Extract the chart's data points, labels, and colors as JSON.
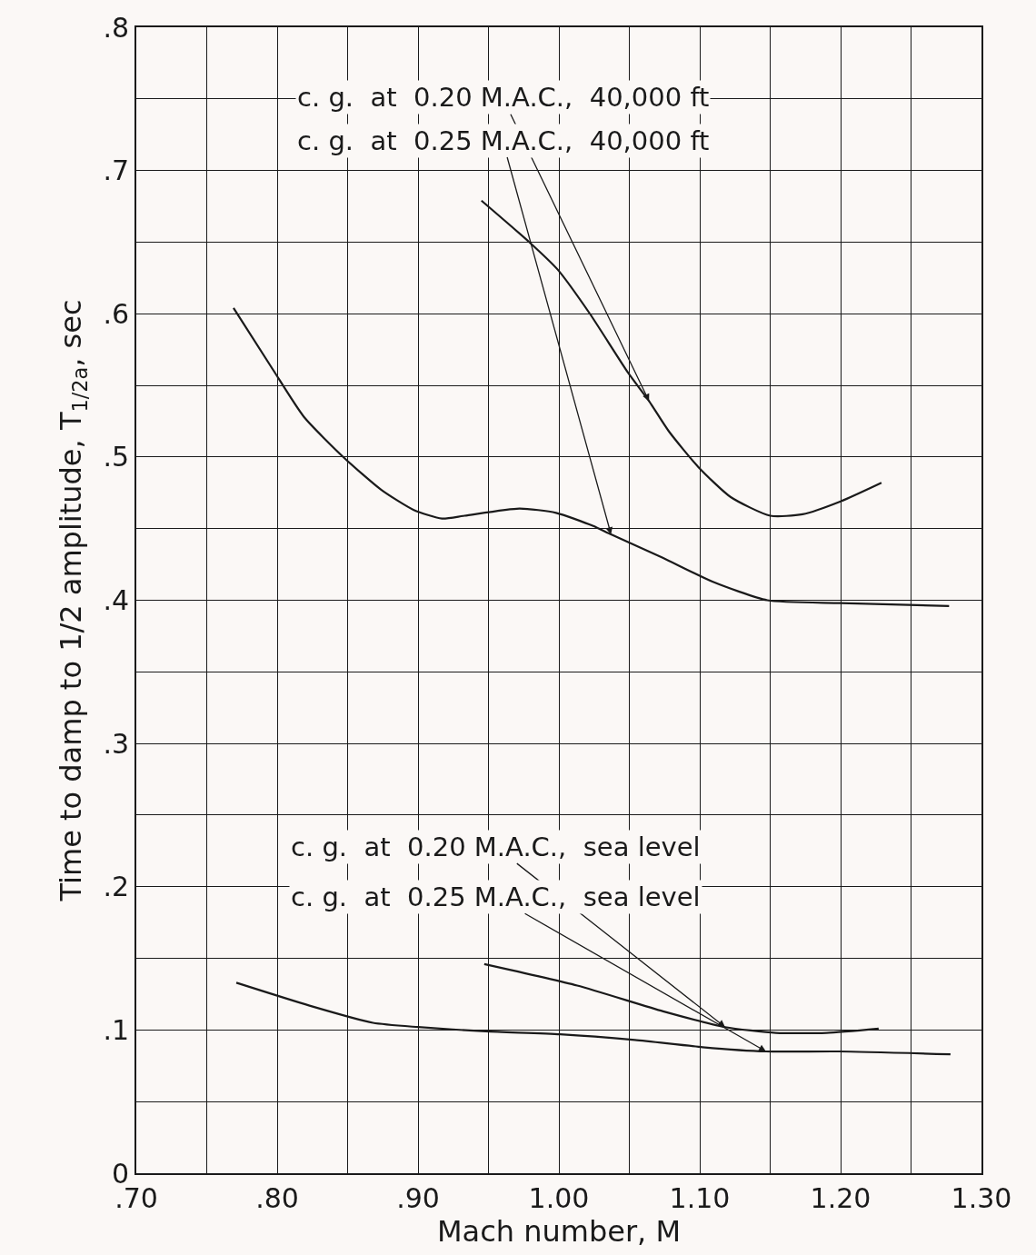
{
  "chart_data": {
    "type": "line",
    "xlabel": "Mach number, M",
    "ylabel": "Time to damp to 1/2 amplitude, T$_{1/2a}$, sec",
    "xlim": [
      0.7,
      1.3
    ],
    "ylim": [
      0,
      0.8
    ],
    "xticks": [
      {
        "value": 0.7,
        "label": ".70"
      },
      {
        "value": 0.75,
        "label": null
      },
      {
        "value": 0.8,
        "label": ".80"
      },
      {
        "value": 0.85,
        "label": null
      },
      {
        "value": 0.9,
        "label": ".90"
      },
      {
        "value": 0.95,
        "label": null
      },
      {
        "value": 1.0,
        "label": "1.00"
      },
      {
        "value": 1.05,
        "label": null
      },
      {
        "value": 1.1,
        "label": "1.10"
      },
      {
        "value": 1.15,
        "label": null
      },
      {
        "value": 1.2,
        "label": "1.20"
      },
      {
        "value": 1.25,
        "label": null
      },
      {
        "value": 1.3,
        "label": "1.30"
      }
    ],
    "yticks": [
      0,
      {
        "value": 0.05,
        "label": null
      },
      {
        "value": 0.1,
        "label": ".1"
      },
      {
        "value": 0.15,
        "label": null
      },
      {
        "value": 0.2,
        "label": ".2"
      },
      {
        "value": 0.25,
        "label": null
      },
      {
        "value": 0.3,
        "label": ".3"
      },
      {
        "value": 0.35,
        "label": null
      },
      {
        "value": 0.4,
        "label": ".4"
      },
      {
        "value": 0.45,
        "label": null
      },
      {
        "value": 0.5,
        "label": ".5"
      },
      {
        "value": 0.55,
        "label": null
      },
      {
        "value": 0.6,
        "label": ".6"
      },
      {
        "value": 0.65,
        "label": null
      },
      {
        "value": 0.7,
        "label": ".7"
      },
      {
        "value": 0.75,
        "label": null
      },
      {
        "value": 0.8,
        "label": ".8"
      }
    ],
    "grid": true,
    "legend": false,
    "marker": "none",
    "line_style": "solid",
    "series": [
      {
        "color": "#1a1a1a",
        "x": [
          0.945,
          0.979,
          0.999,
          1.022,
          1.049,
          1.064,
          1.078,
          1.099,
          1.122,
          1.15,
          1.173,
          1.2,
          1.229
        ],
        "values": [
          0.679,
          0.65,
          0.631,
          0.6,
          0.559,
          0.539,
          0.518,
          0.493,
          0.472,
          0.459,
          0.46,
          0.469,
          0.482
        ]
      },
      {
        "color": "#1a1a1a",
        "x": [
          0.769,
          0.797,
          0.819,
          0.848,
          0.874,
          0.897,
          0.917,
          0.933,
          0.972,
          0.998,
          1.024,
          1.037,
          1.073,
          1.109,
          1.148,
          1.2,
          1.277
        ],
        "values": [
          0.604,
          0.561,
          0.528,
          0.499,
          0.477,
          0.463,
          0.457,
          0.459,
          0.464,
          0.461,
          0.452,
          0.446,
          0.43,
          0.413,
          0.4,
          0.398,
          0.396
        ]
      },
      {
        "color": "#1a1a1a",
        "x": [
          0.947,
          1.013,
          1.074,
          1.118,
          1.154,
          1.19,
          1.227
        ],
        "values": [
          0.146,
          0.131,
          0.113,
          0.102,
          0.098,
          0.098,
          0.101
        ]
      },
      {
        "color": "#1a1a1a",
        "x": [
          0.771,
          0.823,
          0.868,
          0.9,
          0.948,
          1.001,
          1.054,
          1.102,
          1.147,
          1.199,
          1.278
        ],
        "values": [
          0.133,
          0.117,
          0.105,
          0.102,
          0.099,
          0.097,
          0.093,
          0.088,
          0.085,
          0.085,
          0.083
        ]
      }
    ],
    "annotations": [
      {
        "text": "c. g.  at  0.20 M.A.C.,  40,000 ft",
        "x": 1.064,
        "y": 0.539
      },
      {
        "text": "c. g.  at  0.25 M.A.C.,  40,000 ft",
        "x": 1.037,
        "y": 0.446
      },
      {
        "text": "c. g.  at  0.20 M.A.C.,  sea level",
        "x": 1.118,
        "y": 0.102
      },
      {
        "text": "c. g.  at  0.25 M.A.C.,  sea level",
        "x": 1.147,
        "y": 0.085
      }
    ]
  }
}
